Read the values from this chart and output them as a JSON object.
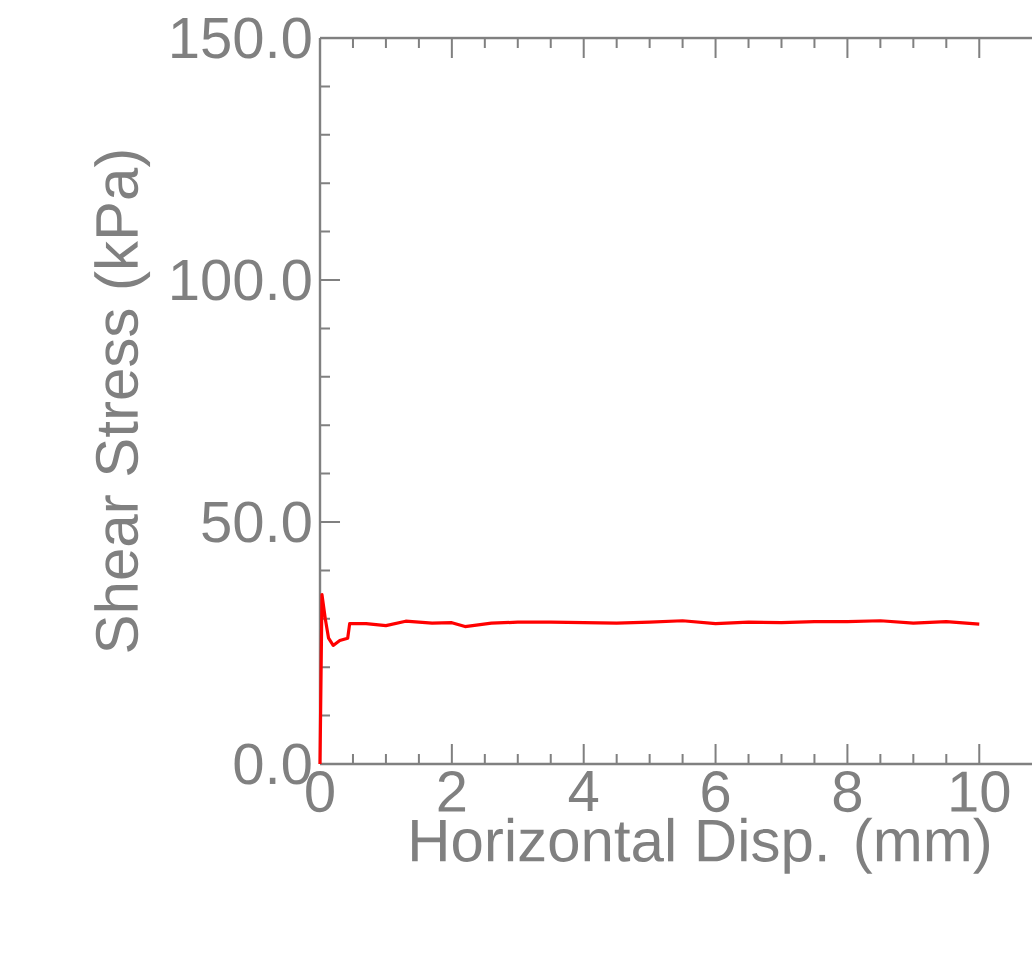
{
  "chart_data": {
    "type": "line",
    "xlabel": "Horizontal Disp. (mm)",
    "ylabel": "Shear Stress (kPa)",
    "xlim": [
      0,
      10.8
    ],
    "ylim": [
      0,
      150
    ],
    "xticks": [
      0,
      2,
      4,
      6,
      8,
      10
    ],
    "yticks": [
      {
        "value": 0,
        "label": "0.0"
      },
      {
        "value": 50,
        "label": "50.0"
      },
      {
        "value": 100,
        "label": "100.0"
      },
      {
        "value": 150,
        "label": "150.0"
      }
    ],
    "grid": false,
    "series": [
      {
        "color": "#ff0000",
        "x": [
          0,
          0.03,
          0.08,
          0.13,
          0.2,
          0.3,
          0.42,
          0.45,
          0.7,
          1.0,
          1.3,
          1.7,
          2.0,
          2.2,
          2.6,
          3.0,
          3.5,
          4.0,
          4.5,
          5.0,
          5.5,
          6.0,
          6.5,
          7.0,
          7.5,
          8.0,
          8.5,
          9.0,
          9.5,
          10.0
        ],
        "values": [
          0,
          35,
          30,
          26,
          24.5,
          25.5,
          26,
          29,
          29,
          28.6,
          29.5,
          29.1,
          29.2,
          28.4,
          29.1,
          29.3,
          29.3,
          29.2,
          29.1,
          29.3,
          29.6,
          29.0,
          29.3,
          29.2,
          29.4,
          29.4,
          29.6,
          29.1,
          29.4,
          28.9
        ]
      }
    ]
  }
}
